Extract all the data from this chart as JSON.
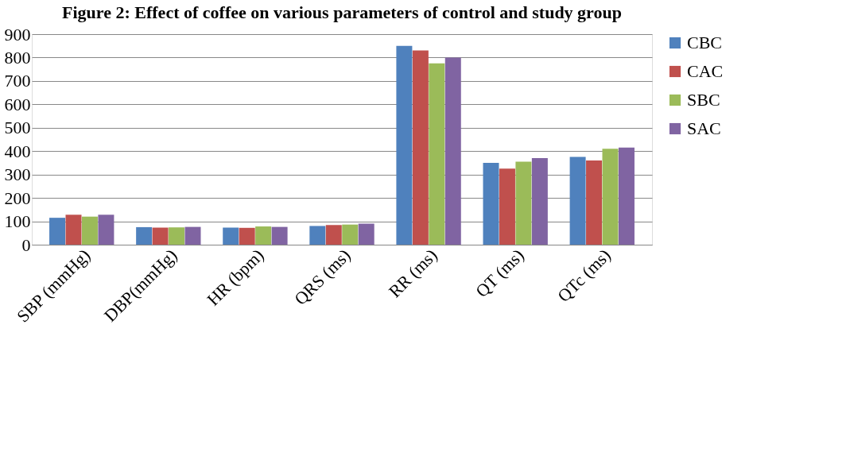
{
  "chart_data": {
    "type": "bar",
    "title": "Figure 2: Effect of coffee on various parameters of control and study group",
    "categories": [
      "SBP (mmHg)",
      "DBP(mmHg)",
      "HR (bpm)",
      "QRS (ms)",
      "RR (ms)",
      "QT (ms)",
      "QTc (ms)"
    ],
    "series": [
      {
        "name": "CBC",
        "color": "#4f81bd",
        "values": [
          115,
          75,
          73,
          80,
          850,
          350,
          375
        ]
      },
      {
        "name": "CAC",
        "color": "#c0504d",
        "values": [
          128,
          73,
          72,
          84,
          830,
          325,
          360
        ]
      },
      {
        "name": "SBC",
        "color": "#9bbb59",
        "values": [
          120,
          74,
          78,
          86,
          775,
          355,
          410
        ]
      },
      {
        "name": "SAC",
        "color": "#8064a2",
        "values": [
          128,
          76,
          76,
          90,
          800,
          370,
          415
        ]
      }
    ],
    "ylim": [
      0,
      900
    ],
    "yticks": [
      0,
      100,
      200,
      300,
      400,
      500,
      600,
      700,
      800,
      900
    ],
    "grid": "y",
    "legend": "right"
  }
}
